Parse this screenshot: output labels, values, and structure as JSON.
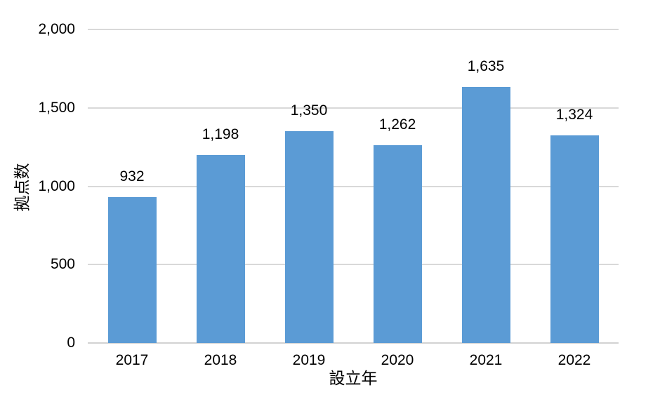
{
  "chart_data": {
    "type": "bar",
    "title": "",
    "categories": [
      "2017",
      "2018",
      "2019",
      "2020",
      "2021",
      "2022"
    ],
    "values": [
      932,
      1198,
      1350,
      1262,
      1635,
      1324
    ],
    "value_labels": [
      "932",
      "1,198",
      "1,350",
      "1,262",
      "1,635",
      "1,324"
    ],
    "xlabel": "設立年",
    "ylabel": "拠点数",
    "ylim": [
      0,
      2000
    ],
    "yticks": [
      0,
      500,
      1000,
      1500,
      2000
    ],
    "ytick_labels": [
      "0",
      "500",
      "1,000",
      "1,500",
      "2,000"
    ],
    "grid": true,
    "legend": "none",
    "bar_color": "#5B9BD5",
    "gridline_color": "#D9D9D9",
    "text_color": "#000000",
    "background_color": "#FFFFFF"
  }
}
